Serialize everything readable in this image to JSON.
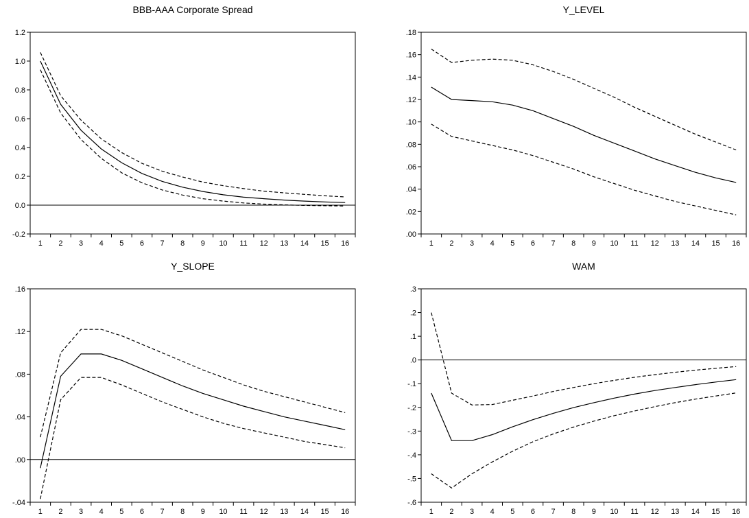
{
  "chart_data": [
    {
      "type": "line",
      "title": "BBB-AAA Corporate Spread",
      "xlabel": "",
      "ylabel": "",
      "x": [
        1,
        2,
        3,
        4,
        5,
        6,
        7,
        8,
        9,
        10,
        11,
        12,
        13,
        14,
        15,
        16
      ],
      "ylim": [
        -0.2,
        1.2
      ],
      "yticks": [
        -0.2,
        0.0,
        0.2,
        0.4,
        0.6,
        0.8,
        1.0,
        1.2
      ],
      "ytick_labels": [
        "-0.2",
        "0.0",
        "0.2",
        "0.4",
        "0.6",
        "0.8",
        "1.0",
        "1.2"
      ],
      "zero_line": 0,
      "grid": false,
      "series": [
        {
          "style": "solid",
          "values": [
            1.0,
            0.7,
            0.52,
            0.39,
            0.295,
            0.22,
            0.165,
            0.125,
            0.095,
            0.072,
            0.055,
            0.045,
            0.035,
            0.028,
            0.022,
            0.018
          ]
        },
        {
          "style": "dashed",
          "values": [
            1.06,
            0.76,
            0.59,
            0.46,
            0.365,
            0.29,
            0.235,
            0.195,
            0.16,
            0.135,
            0.115,
            0.097,
            0.085,
            0.075,
            0.065,
            0.057
          ]
        },
        {
          "style": "dashed",
          "values": [
            0.94,
            0.64,
            0.455,
            0.325,
            0.225,
            0.155,
            0.105,
            0.07,
            0.045,
            0.028,
            0.015,
            0.007,
            0.002,
            -0.002,
            -0.004,
            -0.006
          ]
        }
      ]
    },
    {
      "type": "line",
      "title": "Y_LEVEL",
      "xlabel": "",
      "ylabel": "",
      "x": [
        1,
        2,
        3,
        4,
        5,
        6,
        7,
        8,
        9,
        10,
        11,
        12,
        13,
        14,
        15,
        16
      ],
      "ylim": [
        0.0,
        0.18
      ],
      "yticks": [
        0.0,
        0.02,
        0.04,
        0.06,
        0.08,
        0.1,
        0.12,
        0.14,
        0.16,
        0.18
      ],
      "ytick_labels": [
        ".00",
        ".02",
        ".04",
        ".06",
        ".08",
        ".10",
        ".12",
        ".14",
        ".16",
        ".18"
      ],
      "zero_line": null,
      "grid": false,
      "series": [
        {
          "style": "solid",
          "values": [
            0.131,
            0.12,
            0.119,
            0.118,
            0.115,
            0.11,
            0.103,
            0.096,
            0.088,
            0.081,
            0.074,
            0.067,
            0.061,
            0.055,
            0.05,
            0.046
          ]
        },
        {
          "style": "dashed",
          "values": [
            0.165,
            0.153,
            0.155,
            0.156,
            0.155,
            0.151,
            0.145,
            0.138,
            0.13,
            0.122,
            0.113,
            0.105,
            0.097,
            0.089,
            0.082,
            0.075
          ]
        },
        {
          "style": "dashed",
          "values": [
            0.098,
            0.087,
            0.083,
            0.079,
            0.075,
            0.07,
            0.064,
            0.058,
            0.051,
            0.045,
            0.039,
            0.034,
            0.029,
            0.025,
            0.021,
            0.017
          ]
        }
      ]
    },
    {
      "type": "line",
      "title": "Y_SLOPE",
      "xlabel": "",
      "ylabel": "",
      "x": [
        1,
        2,
        3,
        4,
        5,
        6,
        7,
        8,
        9,
        10,
        11,
        12,
        13,
        14,
        15,
        16
      ],
      "ylim": [
        -0.04,
        0.16
      ],
      "yticks": [
        -0.04,
        0.0,
        0.04,
        0.08,
        0.12,
        0.16
      ],
      "ytick_labels": [
        "-.04",
        ".00",
        ".04",
        ".08",
        ".12",
        ".16"
      ],
      "zero_line": 0,
      "grid": false,
      "series": [
        {
          "style": "solid",
          "values": [
            -0.008,
            0.078,
            0.099,
            0.099,
            0.093,
            0.085,
            0.077,
            0.069,
            0.062,
            0.056,
            0.05,
            0.045,
            0.04,
            0.036,
            0.032,
            0.028
          ]
        },
        {
          "style": "dashed",
          "values": [
            0.021,
            0.1,
            0.122,
            0.122,
            0.116,
            0.108,
            0.1,
            0.092,
            0.084,
            0.077,
            0.07,
            0.064,
            0.059,
            0.054,
            0.049,
            0.044
          ]
        },
        {
          "style": "dashed",
          "values": [
            -0.037,
            0.056,
            0.077,
            0.077,
            0.07,
            0.062,
            0.054,
            0.047,
            0.04,
            0.034,
            0.029,
            0.025,
            0.021,
            0.017,
            0.014,
            0.011
          ]
        }
      ]
    },
    {
      "type": "line",
      "title": "WAM",
      "xlabel": "",
      "ylabel": "",
      "x": [
        1,
        2,
        3,
        4,
        5,
        6,
        7,
        8,
        9,
        10,
        11,
        12,
        13,
        14,
        15,
        16
      ],
      "ylim": [
        -0.6,
        0.3
      ],
      "yticks": [
        -0.6,
        -0.5,
        -0.4,
        -0.3,
        -0.2,
        -0.1,
        0.0,
        0.1,
        0.2,
        0.3
      ],
      "ytick_labels": [
        "-.6",
        "-.5",
        "-.4",
        "-.3",
        "-.2",
        "-.1",
        ".0",
        ".1",
        ".2",
        ".3"
      ],
      "zero_line": 0,
      "grid": false,
      "series": [
        {
          "style": "solid",
          "values": [
            -0.14,
            -0.34,
            -0.34,
            -0.315,
            -0.282,
            -0.252,
            -0.225,
            -0.201,
            -0.18,
            -0.161,
            -0.144,
            -0.129,
            -0.116,
            -0.104,
            -0.093,
            -0.083
          ]
        },
        {
          "style": "dashed",
          "values": [
            0.2,
            -0.14,
            -0.19,
            -0.188,
            -0.17,
            -0.152,
            -0.133,
            -0.116,
            -0.1,
            -0.086,
            -0.073,
            -0.062,
            -0.052,
            -0.043,
            -0.035,
            -0.028
          ]
        },
        {
          "style": "dashed",
          "values": [
            -0.48,
            -0.54,
            -0.48,
            -0.43,
            -0.385,
            -0.345,
            -0.312,
            -0.283,
            -0.258,
            -0.235,
            -0.215,
            -0.197,
            -0.18,
            -0.165,
            -0.152,
            -0.139
          ]
        }
      ]
    }
  ]
}
